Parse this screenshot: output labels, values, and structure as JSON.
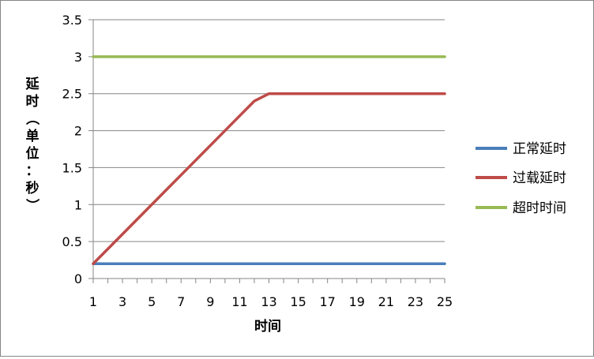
{
  "chart_data": {
    "type": "line",
    "title": "",
    "xlabel": "时间",
    "ylabel": "延时（单位：秒）",
    "x": [
      1,
      2,
      3,
      4,
      5,
      6,
      7,
      8,
      9,
      10,
      11,
      12,
      13,
      14,
      15,
      16,
      17,
      18,
      19,
      20,
      21,
      22,
      23,
      24,
      25
    ],
    "x_tick_labels": [
      "1",
      "3",
      "5",
      "7",
      "9",
      "11",
      "13",
      "15",
      "17",
      "19",
      "21",
      "23",
      "25"
    ],
    "y_tick_labels": [
      "0",
      "0.5",
      "1",
      "1.5",
      "2",
      "2.5",
      "3",
      "3.5"
    ],
    "ylim": [
      0,
      3.5
    ],
    "y_ticks": [
      0,
      0.5,
      1,
      1.5,
      2,
      2.5,
      3,
      3.5
    ],
    "grid": "horizontal",
    "legend_position": "right",
    "series": [
      {
        "name": "正常延时",
        "color": "#4a7ebb",
        "values": [
          0.2,
          0.2,
          0.2,
          0.2,
          0.2,
          0.2,
          0.2,
          0.2,
          0.2,
          0.2,
          0.2,
          0.2,
          0.2,
          0.2,
          0.2,
          0.2,
          0.2,
          0.2,
          0.2,
          0.2,
          0.2,
          0.2,
          0.2,
          0.2,
          0.2
        ]
      },
      {
        "name": "过载延时",
        "color": "#be4b48",
        "values": [
          0.2,
          0.4,
          0.6,
          0.8,
          1.0,
          1.2,
          1.4,
          1.6,
          1.8,
          2.0,
          2.2,
          2.4,
          2.5,
          2.5,
          2.5,
          2.5,
          2.5,
          2.5,
          2.5,
          2.5,
          2.5,
          2.5,
          2.5,
          2.5,
          2.5
        ]
      },
      {
        "name": "超时时间",
        "color": "#98b954",
        "values": [
          3,
          3,
          3,
          3,
          3,
          3,
          3,
          3,
          3,
          3,
          3,
          3,
          3,
          3,
          3,
          3,
          3,
          3,
          3,
          3,
          3,
          3,
          3,
          3,
          3
        ]
      }
    ]
  }
}
